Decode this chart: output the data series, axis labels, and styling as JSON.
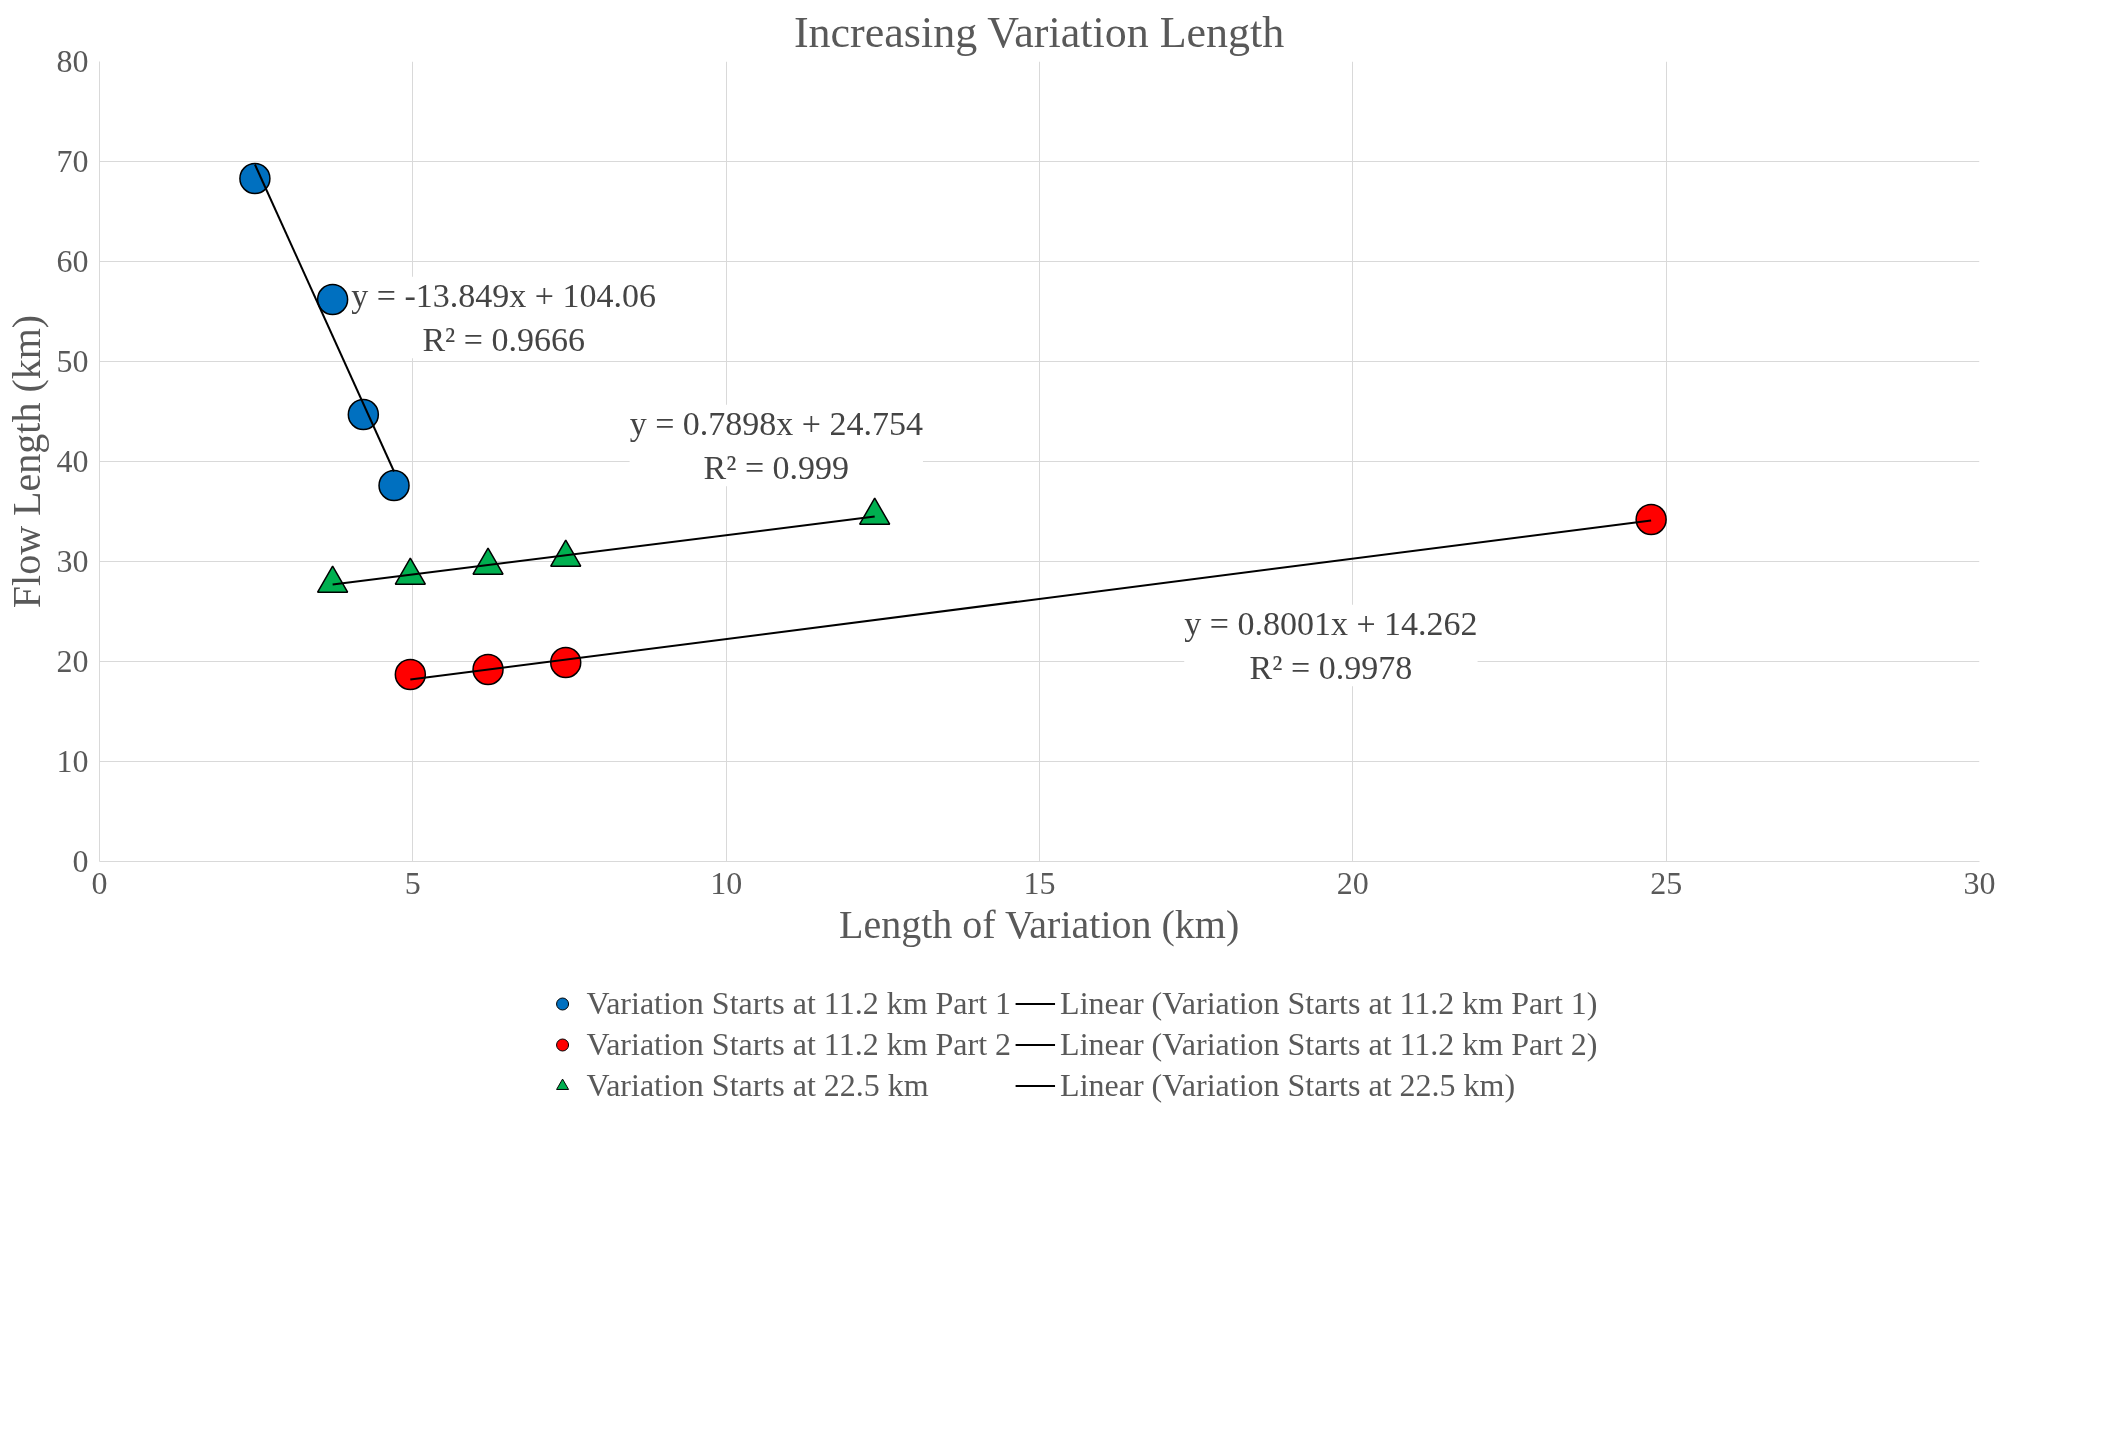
{
  "chart_data": {
    "type": "scatter",
    "title": "Increasing Variation Length",
    "xlabel": "Length of Variation (km)",
    "ylabel": "Flow Length (km)",
    "xlim": [
      0,
      30
    ],
    "xticks": [
      0,
      5,
      10,
      15,
      20,
      25,
      30
    ],
    "ylim": [
      0,
      80
    ],
    "yticks": [
      0,
      10,
      20,
      30,
      40,
      50,
      60,
      70,
      80
    ],
    "grid": true,
    "legend": "bottom",
    "series": [
      {
        "name": "Variation Starts at 11.2 km Part 1",
        "marker": "circle",
        "color": "#0070c0",
        "x": [
          2.48,
          3.72,
          4.21,
          4.7
        ],
        "values": [
          68.3,
          56.2,
          44.7,
          37.6
        ]
      },
      {
        "name": "Variation Starts at 11.2 km Part 2",
        "marker": "circle",
        "color": "#ff0000",
        "x": [
          4.96,
          6.2,
          7.44,
          24.76
        ],
        "values": [
          18.7,
          19.2,
          19.9,
          34.2
        ]
      },
      {
        "name": "Variation Starts at 22.5 km",
        "marker": "triangle",
        "color": "#00b050",
        "x": [
          3.72,
          4.96,
          6.2,
          7.44,
          12.37
        ],
        "values": [
          27.8,
          28.6,
          29.6,
          30.4,
          34.6
        ]
      },
      {
        "name": "Linear (Variation Starts at 11.2 km Part 1)",
        "type": "line",
        "color": "#000000",
        "x": [
          2.48,
          4.7
        ],
        "values": [
          69.7,
          39.0
        ]
      },
      {
        "name": "Linear (Variation Starts at 11.2 km Part 2)",
        "type": "line",
        "color": "#000000",
        "x": [
          4.96,
          24.76
        ],
        "values": [
          18.2,
          34.1
        ]
      },
      {
        "name": "Linear (Variation Starts at 22.5 km)",
        "type": "line",
        "color": "#000000",
        "x": [
          3.72,
          12.37
        ],
        "values": [
          27.7,
          34.5
        ]
      }
    ],
    "annotations": [
      "y = -13.849x + 104.06\nR² = 0.9666",
      "y = 0.7898x + 24.754\nR² = 0.999",
      "y = 0.8001x + 14.262\nR² = 0.9978"
    ]
  }
}
